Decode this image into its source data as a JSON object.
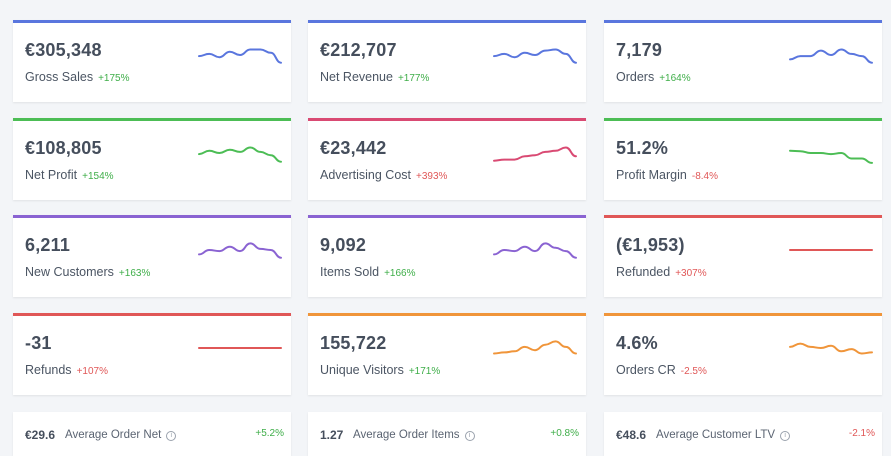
{
  "cards": [
    {
      "value": "€305,348",
      "label": "Gross Sales",
      "change": "+175%",
      "trend": "pos",
      "color": "#5a76de",
      "spark": [
        0.55,
        0.45,
        0.6,
        0.35,
        0.5,
        0.25,
        0.25,
        0.4,
        0.85
      ]
    },
    {
      "value": "€212,707",
      "label": "Net Revenue",
      "change": "+177%",
      "trend": "pos",
      "color": "#5a76de",
      "spark": [
        0.55,
        0.45,
        0.6,
        0.4,
        0.5,
        0.3,
        0.25,
        0.45,
        0.85
      ]
    },
    {
      "value": "7,179",
      "label": "Orders",
      "change": "+164%",
      "trend": "pos",
      "color": "#5a76de",
      "spark": [
        0.7,
        0.55,
        0.55,
        0.3,
        0.5,
        0.25,
        0.45,
        0.55,
        0.85
      ]
    },
    {
      "value": "€108,805",
      "label": "Net Profit",
      "change": "+154%",
      "trend": "pos",
      "color": "#4cbd55",
      "spark": [
        0.55,
        0.4,
        0.5,
        0.35,
        0.45,
        0.25,
        0.45,
        0.6,
        0.9
      ]
    },
    {
      "value": "€23,442",
      "label": "Advertising Cost",
      "change": "+393%",
      "trend": "neg",
      "color": "#d94a73",
      "spark": [
        0.85,
        0.8,
        0.8,
        0.65,
        0.6,
        0.45,
        0.4,
        0.25,
        0.65
      ]
    },
    {
      "value": "51.2%",
      "label": "Profit Margin",
      "change": "-8.4%",
      "trend": "neg",
      "color": "#4cbd55",
      "spark": [
        0.4,
        0.42,
        0.5,
        0.5,
        0.55,
        0.5,
        0.75,
        0.75,
        0.95
      ]
    },
    {
      "value": "6,211",
      "label": "New Customers",
      "change": "+163%",
      "trend": "pos",
      "color": "#8a63d2",
      "spark": [
        0.7,
        0.5,
        0.55,
        0.35,
        0.55,
        0.2,
        0.45,
        0.5,
        0.85
      ]
    },
    {
      "value": "9,092",
      "label": "Items Sold",
      "change": "+166%",
      "trend": "pos",
      "color": "#8a63d2",
      "spark": [
        0.7,
        0.5,
        0.55,
        0.35,
        0.55,
        0.2,
        0.4,
        0.55,
        0.85
      ]
    },
    {
      "value": "(€1,953)",
      "label": "Refunded",
      "change": "+307%",
      "trend": "neg",
      "color": "#e05757",
      "spark": [
        0.5,
        0.5,
        0.5,
        0.5,
        0.5,
        0.5,
        0.5,
        0.5,
        0.5
      ]
    },
    {
      "value": "-31",
      "label": "Refunds",
      "change": "+107%",
      "trend": "neg",
      "color": "#e05757",
      "spark": [
        0.5,
        0.5,
        0.5,
        0.5,
        0.5,
        0.5,
        0.5,
        0.5,
        0.5
      ]
    },
    {
      "value": "155,722",
      "label": "Unique Visitors",
      "change": "+171%",
      "trend": "pos",
      "color": "#f0953a",
      "spark": [
        0.75,
        0.7,
        0.65,
        0.45,
        0.6,
        0.35,
        0.2,
        0.45,
        0.75
      ]
    },
    {
      "value": "4.6%",
      "label": "Orders CR",
      "change": "-2.5%",
      "trend": "neg",
      "color": "#f0953a",
      "spark": [
        0.45,
        0.3,
        0.45,
        0.5,
        0.4,
        0.65,
        0.55,
        0.75,
        0.7
      ]
    }
  ],
  "summary": [
    {
      "value": "€29.6",
      "label": "Average Order Net",
      "change": "+5.2%",
      "trend": "pos"
    },
    {
      "value": "1.27",
      "label": "Average Order Items",
      "change": "+0.8%",
      "trend": "pos"
    },
    {
      "value": "€48.6",
      "label": "Average Customer LTV",
      "change": "-2.1%",
      "trend": "neg"
    }
  ],
  "info_glyph": "i"
}
